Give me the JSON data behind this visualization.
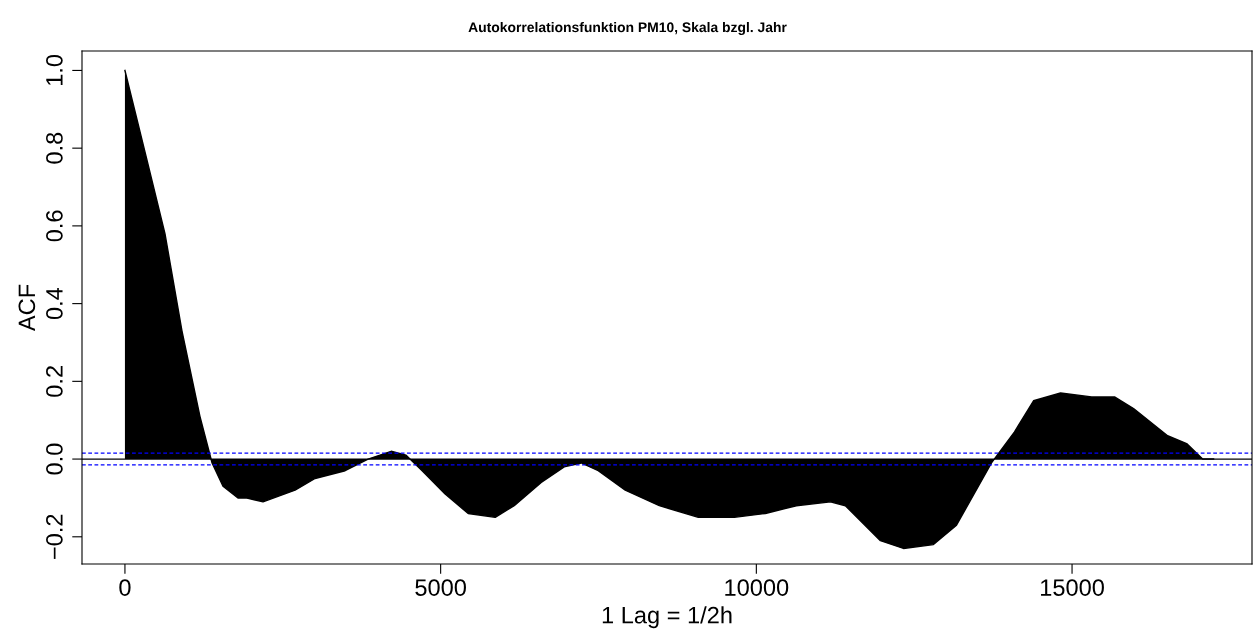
{
  "chart_data": {
    "type": "area",
    "title": "Autokorrelationsfunktion PM10, Skala bzgl. Jahr",
    "xlabel": "1 Lag = 1/2h",
    "ylabel": "ACF",
    "xlim": [
      -680,
      17850
    ],
    "ylim": [
      -0.27,
      1.05
    ],
    "xticks": [
      0,
      5000,
      10000,
      15000
    ],
    "yticks": [
      {
        "value": -0.2,
        "label": "−0.2"
      },
      {
        "value": 0.0,
        "label": "0.0"
      },
      {
        "value": 0.2,
        "label": "0.2"
      },
      {
        "value": 0.4,
        "label": "0.4"
      },
      {
        "value": 0.6,
        "label": "0.6"
      },
      {
        "value": 0.8,
        "label": "0.8"
      },
      {
        "value": 1.0,
        "label": "1.0"
      }
    ],
    "grid": false,
    "series": [
      {
        "color": "#000000",
        "x": [
          0,
          333,
          634,
          903,
          1188,
          1380,
          1553,
          1790,
          1918,
          2187,
          2694,
          3011,
          3487,
          3851,
          4216,
          4453,
          4707,
          5071,
          5436,
          5864,
          6165,
          6593,
          6957,
          7227,
          7496,
          7924,
          8463,
          9081,
          9651,
          10143,
          10634,
          11173,
          11410,
          11965,
          12330,
          12805,
          13170,
          13724,
          14089,
          14390,
          14818,
          15309,
          15673,
          15974,
          16513,
          16815,
          17068,
          17242
        ],
        "values": [
          1.0,
          0.78,
          0.58,
          0.33,
          0.11,
          -0.01,
          -0.07,
          -0.1,
          -0.1,
          -0.11,
          -0.08,
          -0.05,
          -0.03,
          0.0,
          0.02,
          0.01,
          -0.03,
          -0.09,
          -0.14,
          -0.15,
          -0.12,
          -0.06,
          -0.02,
          -0.01,
          -0.03,
          -0.08,
          -0.12,
          -0.15,
          -0.15,
          -0.14,
          -0.12,
          -0.11,
          -0.12,
          -0.21,
          -0.23,
          -0.22,
          -0.17,
          -0.01,
          0.07,
          0.15,
          0.17,
          0.16,
          0.16,
          0.13,
          0.06,
          0.04,
          0.0,
          0.0
        ]
      }
    ],
    "ref_lines": [
      {
        "axis": "y",
        "value": 0,
        "color": "#000000",
        "line_style": "solid"
      },
      {
        "axis": "y",
        "value": 0.015,
        "color": "#0000ff",
        "line_style": "dashed"
      },
      {
        "axis": "y",
        "value": -0.015,
        "color": "#0000ff",
        "line_style": "dashed"
      }
    ]
  }
}
